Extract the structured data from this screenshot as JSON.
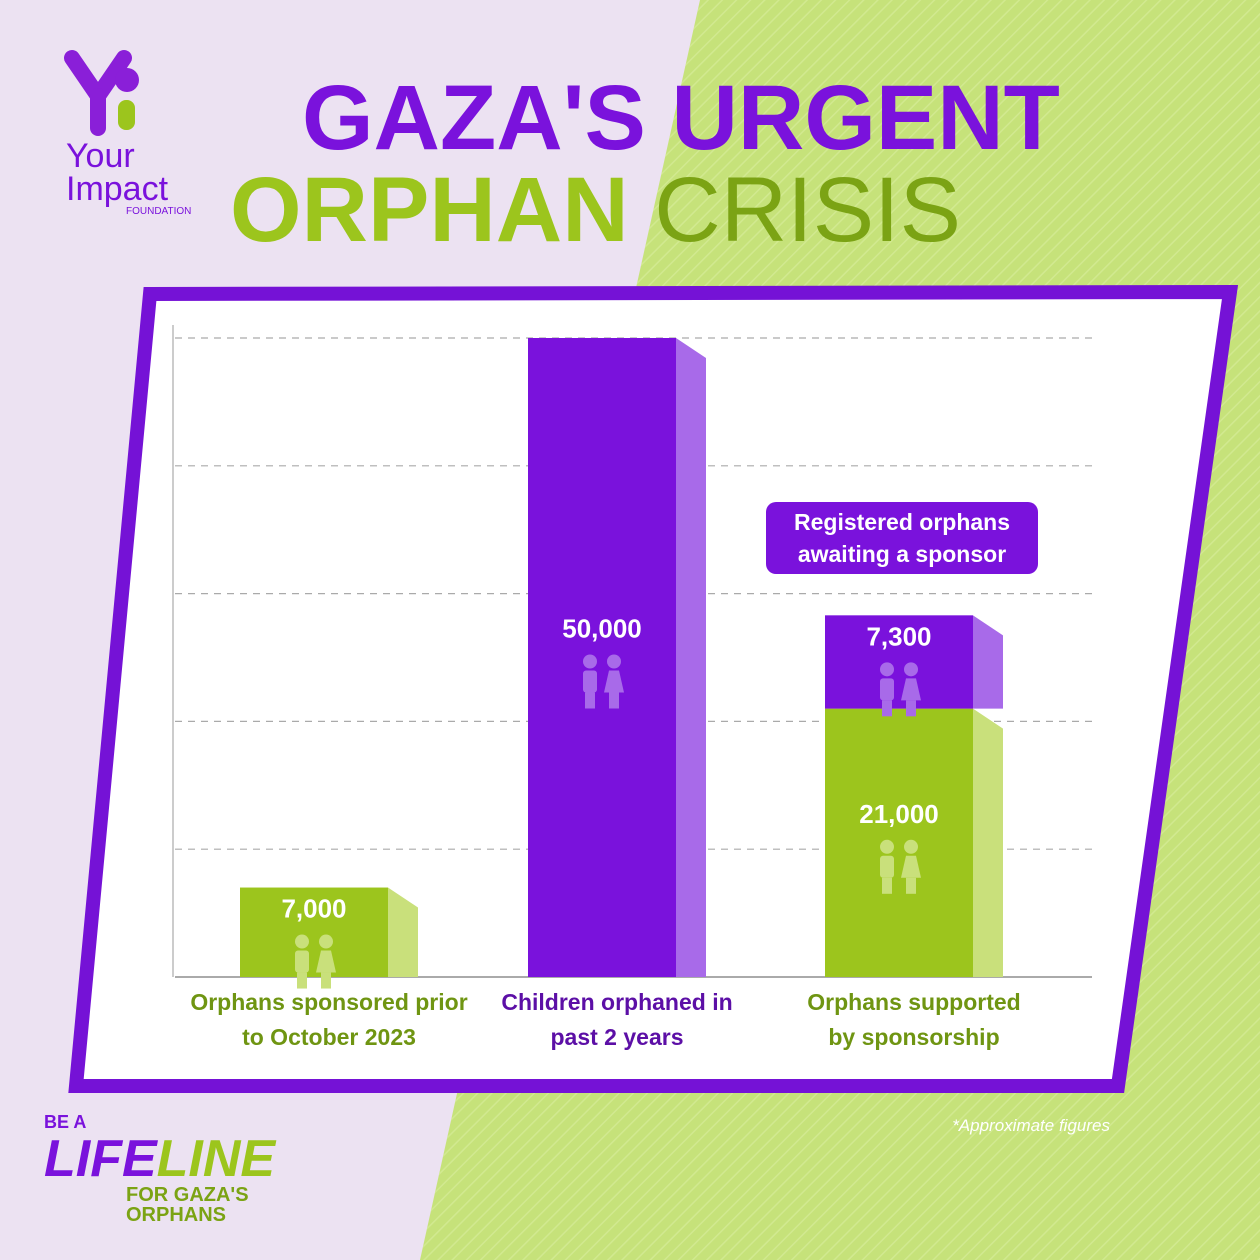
{
  "logo": {
    "line1": "Your",
    "line2": "Impact",
    "line3": "FOUNDATION"
  },
  "tagline": {
    "line1": "BE A",
    "life": "LIFE",
    "line": "LINE",
    "line3": "FOR GAZA'S",
    "line4": "ORPHANS"
  },
  "chart_data": {
    "type": "bar",
    "title": {
      "line1": "GAZA'S URGENT",
      "word1": "ORPHAN",
      "word2": "CRISIS"
    },
    "categories": [
      "Orphans sponsored prior to October 2023",
      "Children orphaned in past 2 years",
      "Orphans supported by sponsorship"
    ],
    "series": [
      {
        "color": "#9cc51d",
        "values": [
          7000,
          null,
          21000
        ],
        "value_labels": [
          "7,000",
          null,
          "21,000"
        ]
      },
      {
        "color": "#7a12dc",
        "values": [
          null,
          50000,
          7300
        ],
        "value_labels": [
          null,
          "50,000",
          "7,300"
        ]
      }
    ],
    "stacked": true,
    "ylim": [
      0,
      50000
    ],
    "yticks": [
      0,
      10000,
      20000,
      30000,
      40000,
      50000
    ],
    "grid": true,
    "annotation": "Registered orphans awaiting a sponsor",
    "footnote": "*Approximate figures"
  }
}
